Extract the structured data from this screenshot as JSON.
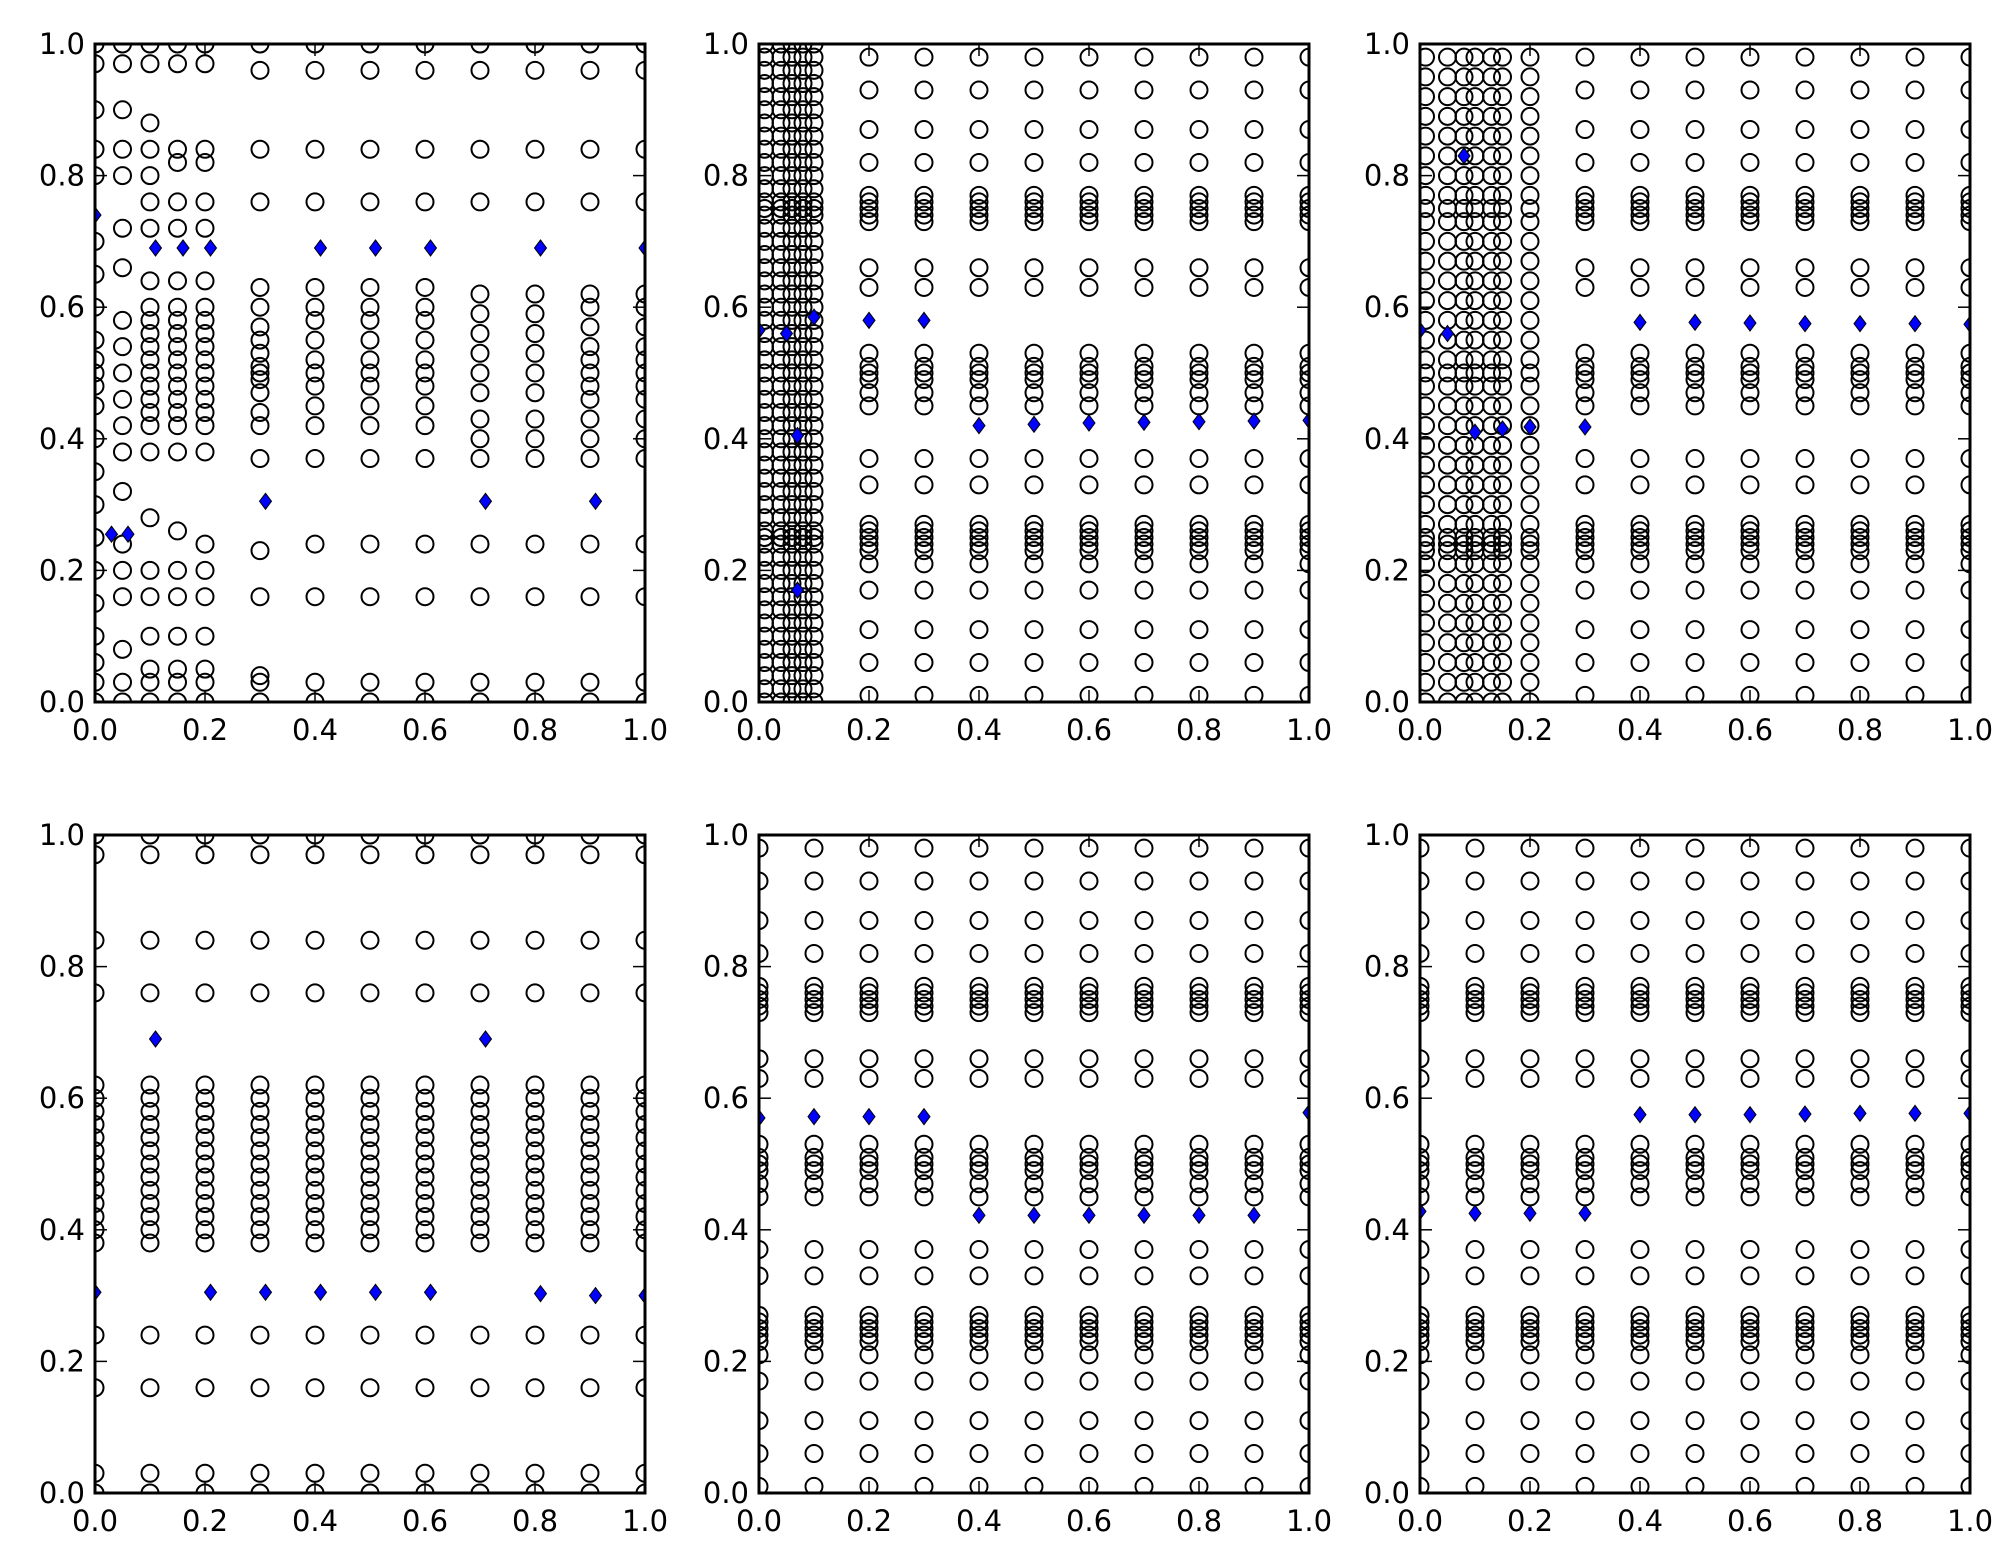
{
  "figure": {
    "colors": {
      "axes": "#000000",
      "circle_edge": "#000000",
      "diamond_fill": "#0000ff",
      "diamond_edge": "#000000",
      "background": "#ffffff"
    }
  },
  "chart_data": [
    {
      "type": "scatter",
      "xlim": [
        0,
        1
      ],
      "ylim": [
        0,
        1
      ],
      "xticks": [
        "0.0",
        "0.2",
        "0.4",
        "0.6",
        "0.8",
        "1.0"
      ],
      "yticks": [
        "0.0",
        "0.2",
        "0.4",
        "0.6",
        "0.8",
        "1.0"
      ],
      "grid": false,
      "columns": [
        {
          "x": 0.0,
          "y": [
            0.0,
            0.03,
            0.06,
            0.1,
            0.15,
            0.2,
            0.25,
            0.3,
            0.35,
            0.4,
            0.45,
            0.48,
            0.5,
            0.52,
            0.55,
            0.6,
            0.65,
            0.7,
            0.8,
            0.84,
            0.9,
            0.97,
            1.0
          ]
        },
        {
          "x": 0.05,
          "y": [
            0.0,
            0.03,
            0.08,
            0.16,
            0.2,
            0.24,
            0.32,
            0.38,
            0.42,
            0.46,
            0.5,
            0.54,
            0.58,
            0.66,
            0.72,
            0.8,
            0.84,
            0.9,
            0.97,
            1.0
          ]
        },
        {
          "x": 0.1,
          "y": [
            0.0,
            0.03,
            0.05,
            0.1,
            0.16,
            0.2,
            0.28,
            0.38,
            0.42,
            0.44,
            0.46,
            0.48,
            0.5,
            0.52,
            0.54,
            0.56,
            0.58,
            0.6,
            0.64,
            0.72,
            0.76,
            0.8,
            0.84,
            0.88,
            0.97,
            1.0
          ]
        },
        {
          "x": 0.15,
          "y": [
            0.0,
            0.03,
            0.05,
            0.1,
            0.16,
            0.2,
            0.26,
            0.38,
            0.42,
            0.44,
            0.46,
            0.48,
            0.5,
            0.52,
            0.54,
            0.56,
            0.58,
            0.6,
            0.64,
            0.72,
            0.76,
            0.82,
            0.84,
            0.97,
            1.0
          ]
        },
        {
          "x": 0.2,
          "y": [
            0.0,
            0.03,
            0.05,
            0.1,
            0.16,
            0.2,
            0.24,
            0.38,
            0.42,
            0.44,
            0.46,
            0.48,
            0.5,
            0.52,
            0.54,
            0.56,
            0.58,
            0.6,
            0.64,
            0.72,
            0.76,
            0.82,
            0.84,
            0.97,
            1.0
          ]
        },
        {
          "x": 0.3,
          "y": [
            0.0,
            0.03,
            0.04,
            0.16,
            0.23,
            0.37,
            0.42,
            0.44,
            0.47,
            0.49,
            0.5,
            0.51,
            0.53,
            0.55,
            0.57,
            0.6,
            0.63,
            0.76,
            0.84,
            0.96,
            1.0
          ]
        },
        {
          "x": 0.4,
          "y": [
            0.0,
            0.03,
            0.16,
            0.24,
            0.37,
            0.42,
            0.45,
            0.48,
            0.5,
            0.52,
            0.55,
            0.58,
            0.6,
            0.63,
            0.76,
            0.84,
            0.96,
            1.0
          ]
        },
        {
          "x": 0.5,
          "y": [
            0.0,
            0.03,
            0.16,
            0.24,
            0.37,
            0.42,
            0.45,
            0.48,
            0.5,
            0.52,
            0.55,
            0.58,
            0.6,
            0.63,
            0.76,
            0.84,
            0.96,
            1.0
          ]
        },
        {
          "x": 0.6,
          "y": [
            0.0,
            0.03,
            0.16,
            0.24,
            0.37,
            0.42,
            0.45,
            0.48,
            0.5,
            0.52,
            0.55,
            0.58,
            0.6,
            0.63,
            0.76,
            0.84,
            0.96,
            1.0
          ]
        },
        {
          "x": 0.7,
          "y": [
            0.0,
            0.03,
            0.16,
            0.24,
            0.37,
            0.4,
            0.43,
            0.47,
            0.5,
            0.53,
            0.56,
            0.59,
            0.62,
            0.76,
            0.84,
            0.96,
            1.0
          ]
        },
        {
          "x": 0.8,
          "y": [
            0.0,
            0.03,
            0.16,
            0.24,
            0.37,
            0.4,
            0.43,
            0.47,
            0.5,
            0.53,
            0.56,
            0.59,
            0.62,
            0.76,
            0.84,
            0.96,
            1.0
          ]
        },
        {
          "x": 0.9,
          "y": [
            0.0,
            0.03,
            0.16,
            0.24,
            0.37,
            0.4,
            0.43,
            0.46,
            0.48,
            0.5,
            0.52,
            0.54,
            0.57,
            0.6,
            0.62,
            0.76,
            0.84,
            0.96,
            1.0
          ]
        },
        {
          "x": 1.0,
          "y": [
            0.0,
            0.03,
            0.16,
            0.24,
            0.37,
            0.4,
            0.43,
            0.46,
            0.48,
            0.5,
            0.52,
            0.54,
            0.57,
            0.6,
            0.62,
            0.76,
            0.84,
            0.96,
            1.0
          ]
        }
      ],
      "highlight": [
        {
          "x": 0.0,
          "y": 0.74
        },
        {
          "x": 0.03,
          "y": 0.255
        },
        {
          "x": 0.06,
          "y": 0.255
        },
        {
          "x": 0.11,
          "y": 0.69
        },
        {
          "x": 0.16,
          "y": 0.69
        },
        {
          "x": 0.21,
          "y": 0.69
        },
        {
          "x": 0.31,
          "y": 0.305
        },
        {
          "x": 0.41,
          "y": 0.69
        },
        {
          "x": 0.51,
          "y": 0.69
        },
        {
          "x": 0.61,
          "y": 0.69
        },
        {
          "x": 0.71,
          "y": 0.305
        },
        {
          "x": 0.81,
          "y": 0.69
        },
        {
          "x": 0.91,
          "y": 0.305
        },
        {
          "x": 1.0,
          "y": 0.69
        }
      ]
    },
    {
      "type": "scatter",
      "xlim": [
        0,
        1
      ],
      "ylim": [
        0,
        1
      ],
      "xticks": [
        "0.0",
        "0.2",
        "0.4",
        "0.6",
        "0.8",
        "1.0"
      ],
      "yticks": [
        "0.0",
        "0.2",
        "0.4",
        "0.6",
        "0.8",
        "1.0"
      ],
      "grid": false,
      "dense_x": [
        0.01,
        0.04,
        0.06,
        0.08,
        0.1
      ],
      "dense_y": [
        0.0,
        0.02,
        0.04,
        0.06,
        0.08,
        0.1,
        0.12,
        0.14,
        0.16,
        0.18,
        0.2,
        0.22,
        0.24,
        0.25,
        0.26,
        0.28,
        0.3,
        0.32,
        0.34,
        0.36,
        0.38,
        0.4,
        0.42,
        0.44,
        0.46,
        0.48,
        0.5,
        0.52,
        0.54,
        0.56,
        0.58,
        0.6,
        0.62,
        0.64,
        0.66,
        0.68,
        0.7,
        0.72,
        0.74,
        0.75,
        0.76,
        0.78,
        0.8,
        0.82,
        0.84,
        0.86,
        0.88,
        0.9,
        0.92,
        0.94,
        0.96,
        0.98,
        1.0
      ],
      "columns_x": [
        0.2,
        0.3,
        0.4,
        0.5,
        0.6,
        0.7,
        0.8,
        0.9,
        1.0
      ],
      "columns_y": [
        0.01,
        0.06,
        0.11,
        0.17,
        0.21,
        0.23,
        0.24,
        0.25,
        0.26,
        0.27,
        0.33,
        0.37,
        0.45,
        0.47,
        0.49,
        0.5,
        0.51,
        0.53,
        0.63,
        0.66,
        0.73,
        0.74,
        0.75,
        0.76,
        0.77,
        0.82,
        0.87,
        0.93,
        0.98
      ],
      "highlight": [
        {
          "x": 0.0,
          "y": 0.565
        },
        {
          "x": 0.05,
          "y": 0.56
        },
        {
          "x": 0.07,
          "y": 0.405
        },
        {
          "x": 0.07,
          "y": 0.17
        },
        {
          "x": 0.1,
          "y": 0.585
        },
        {
          "x": 0.2,
          "y": 0.58
        },
        {
          "x": 0.3,
          "y": 0.58
        },
        {
          "x": 0.4,
          "y": 0.42
        },
        {
          "x": 0.5,
          "y": 0.422
        },
        {
          "x": 0.6,
          "y": 0.424
        },
        {
          "x": 0.7,
          "y": 0.425
        },
        {
          "x": 0.8,
          "y": 0.426
        },
        {
          "x": 0.9,
          "y": 0.427
        },
        {
          "x": 1.0,
          "y": 0.428
        }
      ]
    },
    {
      "type": "scatter",
      "xlim": [
        0,
        1
      ],
      "ylim": [
        0,
        1
      ],
      "xticks": [
        "0.0",
        "0.2",
        "0.4",
        "0.6",
        "0.8",
        "1.0"
      ],
      "yticks": [
        "0.0",
        "0.2",
        "0.4",
        "0.6",
        "0.8",
        "1.0"
      ],
      "grid": false,
      "dense_x": [
        0.01,
        0.05,
        0.08,
        0.1,
        0.13,
        0.15,
        0.2
      ],
      "dense_y": [
        0.0,
        0.03,
        0.06,
        0.09,
        0.12,
        0.15,
        0.18,
        0.21,
        0.23,
        0.24,
        0.25,
        0.27,
        0.3,
        0.33,
        0.36,
        0.39,
        0.42,
        0.45,
        0.48,
        0.5,
        0.52,
        0.55,
        0.58,
        0.61,
        0.64,
        0.67,
        0.7,
        0.73,
        0.75,
        0.77,
        0.8,
        0.83,
        0.86,
        0.89,
        0.92,
        0.95,
        0.98
      ],
      "columns_x": [
        0.3,
        0.4,
        0.5,
        0.6,
        0.7,
        0.8,
        0.9,
        1.0
      ],
      "columns_y": [
        0.01,
        0.06,
        0.11,
        0.17,
        0.21,
        0.23,
        0.24,
        0.25,
        0.26,
        0.27,
        0.33,
        0.37,
        0.45,
        0.47,
        0.49,
        0.5,
        0.51,
        0.53,
        0.63,
        0.66,
        0.73,
        0.74,
        0.75,
        0.76,
        0.77,
        0.82,
        0.87,
        0.93,
        0.98
      ],
      "highlight": [
        {
          "x": 0.0,
          "y": 0.565
        },
        {
          "x": 0.05,
          "y": 0.56
        },
        {
          "x": 0.08,
          "y": 0.83
        },
        {
          "x": 0.1,
          "y": 0.41
        },
        {
          "x": 0.15,
          "y": 0.415
        },
        {
          "x": 0.2,
          "y": 0.418
        },
        {
          "x": 0.3,
          "y": 0.418
        },
        {
          "x": 0.4,
          "y": 0.577
        },
        {
          "x": 0.5,
          "y": 0.577
        },
        {
          "x": 0.6,
          "y": 0.576
        },
        {
          "x": 0.7,
          "y": 0.575
        },
        {
          "x": 0.8,
          "y": 0.575
        },
        {
          "x": 0.9,
          "y": 0.575
        },
        {
          "x": 1.0,
          "y": 0.574
        }
      ]
    },
    {
      "type": "scatter",
      "xlim": [
        0,
        1
      ],
      "ylim": [
        0,
        1
      ],
      "xticks": [
        "0.0",
        "0.2",
        "0.4",
        "0.6",
        "0.8",
        "1.0"
      ],
      "yticks": [
        "0.0",
        "0.2",
        "0.4",
        "0.6",
        "0.8",
        "1.0"
      ],
      "grid": false,
      "columns_x": [
        0.0,
        0.1,
        0.2,
        0.3,
        0.4,
        0.5,
        0.6,
        0.7,
        0.8,
        0.9,
        1.0
      ],
      "columns_y": [
        0.0,
        0.03,
        0.16,
        0.24,
        0.38,
        0.4,
        0.42,
        0.44,
        0.46,
        0.48,
        0.5,
        0.52,
        0.54,
        0.56,
        0.58,
        0.6,
        0.62,
        0.76,
        0.84,
        0.97,
        1.0
      ],
      "highlight": [
        {
          "x": 0.0,
          "y": 0.305
        },
        {
          "x": 0.11,
          "y": 0.69
        },
        {
          "x": 0.21,
          "y": 0.305
        },
        {
          "x": 0.31,
          "y": 0.305
        },
        {
          "x": 0.41,
          "y": 0.305
        },
        {
          "x": 0.51,
          "y": 0.305
        },
        {
          "x": 0.61,
          "y": 0.305
        },
        {
          "x": 0.71,
          "y": 0.69
        },
        {
          "x": 0.81,
          "y": 0.303
        },
        {
          "x": 0.91,
          "y": 0.3
        },
        {
          "x": 1.0,
          "y": 0.3
        }
      ]
    },
    {
      "type": "scatter",
      "xlim": [
        0,
        1
      ],
      "ylim": [
        0,
        1
      ],
      "xticks": [
        "0.0",
        "0.2",
        "0.4",
        "0.6",
        "0.8",
        "1.0"
      ],
      "yticks": [
        "0.0",
        "0.2",
        "0.4",
        "0.6",
        "0.8",
        "1.0"
      ],
      "grid": false,
      "columns_x": [
        0.0,
        0.1,
        0.2,
        0.3,
        0.4,
        0.5,
        0.6,
        0.7,
        0.8,
        0.9,
        1.0
      ],
      "columns_y": [
        0.01,
        0.06,
        0.11,
        0.17,
        0.21,
        0.23,
        0.24,
        0.25,
        0.26,
        0.27,
        0.33,
        0.37,
        0.45,
        0.47,
        0.49,
        0.5,
        0.51,
        0.53,
        0.63,
        0.66,
        0.73,
        0.74,
        0.75,
        0.76,
        0.77,
        0.82,
        0.87,
        0.93,
        0.98
      ],
      "highlight": [
        {
          "x": 0.0,
          "y": 0.57
        },
        {
          "x": 0.1,
          "y": 0.572
        },
        {
          "x": 0.2,
          "y": 0.572
        },
        {
          "x": 0.3,
          "y": 0.572
        },
        {
          "x": 0.4,
          "y": 0.422
        },
        {
          "x": 0.5,
          "y": 0.422
        },
        {
          "x": 0.6,
          "y": 0.422
        },
        {
          "x": 0.7,
          "y": 0.422
        },
        {
          "x": 0.8,
          "y": 0.422
        },
        {
          "x": 0.9,
          "y": 0.422
        },
        {
          "x": 1.0,
          "y": 0.578
        }
      ]
    },
    {
      "type": "scatter",
      "xlim": [
        0,
        1
      ],
      "ylim": [
        0,
        1
      ],
      "xticks": [
        "0.0",
        "0.2",
        "0.4",
        "0.6",
        "0.8",
        "1.0"
      ],
      "yticks": [
        "0.0",
        "0.2",
        "0.4",
        "0.6",
        "0.8",
        "1.0"
      ],
      "grid": false,
      "columns_x": [
        0.0,
        0.1,
        0.2,
        0.3,
        0.4,
        0.5,
        0.6,
        0.7,
        0.8,
        0.9,
        1.0
      ],
      "columns_y": [
        0.01,
        0.06,
        0.11,
        0.17,
        0.21,
        0.23,
        0.24,
        0.25,
        0.26,
        0.27,
        0.33,
        0.37,
        0.45,
        0.47,
        0.49,
        0.5,
        0.51,
        0.53,
        0.63,
        0.66,
        0.73,
        0.74,
        0.75,
        0.76,
        0.77,
        0.82,
        0.87,
        0.93,
        0.98
      ],
      "highlight": [
        {
          "x": 0.0,
          "y": 0.428
        },
        {
          "x": 0.1,
          "y": 0.425
        },
        {
          "x": 0.2,
          "y": 0.425
        },
        {
          "x": 0.3,
          "y": 0.425
        },
        {
          "x": 0.4,
          "y": 0.575
        },
        {
          "x": 0.5,
          "y": 0.575
        },
        {
          "x": 0.6,
          "y": 0.575
        },
        {
          "x": 0.7,
          "y": 0.576
        },
        {
          "x": 0.8,
          "y": 0.577
        },
        {
          "x": 0.9,
          "y": 0.577
        },
        {
          "x": 1.0,
          "y": 0.577
        }
      ]
    }
  ]
}
